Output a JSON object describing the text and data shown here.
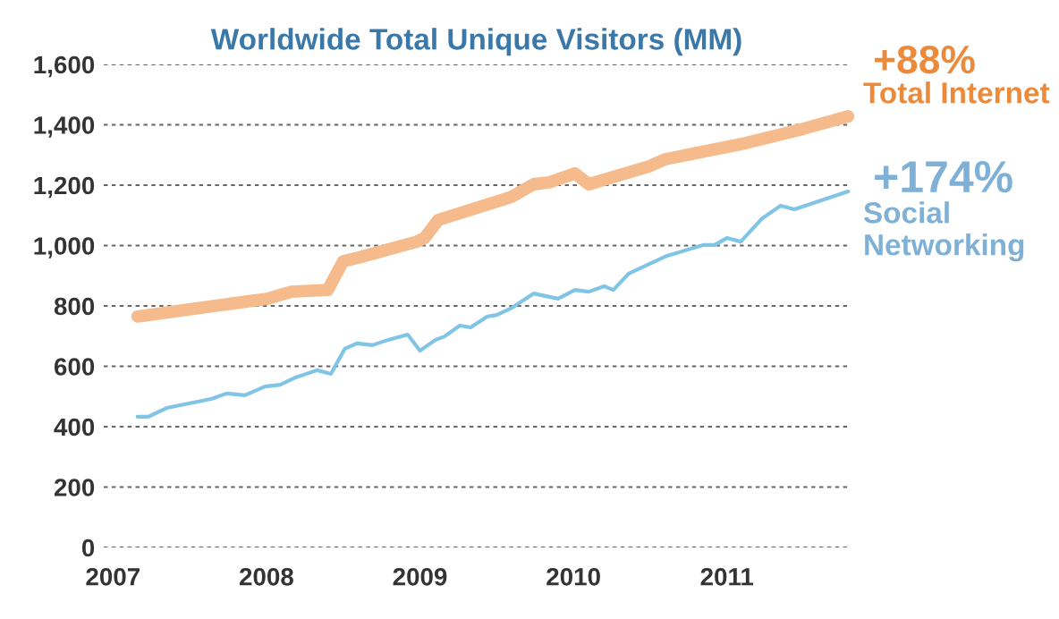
{
  "chart_data": {
    "type": "line",
    "title": "Worldwide Total Unique Visitors (MM)",
    "xlim": [
      2006.94,
      2011.8
    ],
    "xticks": [
      2007,
      2008,
      2009,
      2010,
      2011
    ],
    "ylim": [
      0,
      1600
    ],
    "yticks": [
      {
        "value": 0,
        "label": "0"
      },
      {
        "value": 200,
        "label": "200"
      },
      {
        "value": 400,
        "label": "400"
      },
      {
        "value": 600,
        "label": "600"
      },
      {
        "value": 800,
        "label": "800"
      },
      {
        "value": 1000,
        "label": "1,000"
      },
      {
        "value": 1200,
        "label": "1,200"
      },
      {
        "value": 1400,
        "label": "1,400"
      },
      {
        "value": 1600,
        "label": "1,600"
      }
    ],
    "grid": "y",
    "legend": false,
    "marker": "none",
    "series": [
      {
        "name": "Total Internet",
        "color": "#f6bb8c",
        "x": [
          2007.16,
          2008.01,
          2008.16,
          2008.4,
          2008.5,
          2008.6,
          2008.98,
          2009.03,
          2009.12,
          2009.6,
          2009.74,
          2009.84,
          2010.01,
          2010.1,
          2010.49,
          2010.6,
          2011.12,
          2011.5,
          2011.79
        ],
        "values": [
          765,
          824,
          847,
          853,
          948,
          960,
          1013,
          1025,
          1085,
          1162,
          1203,
          1209,
          1239,
          1203,
          1262,
          1286,
          1339,
          1387,
          1428
        ]
      },
      {
        "name": "Social Networking",
        "color": "#80c4e6",
        "x": [
          2007.16,
          2007.23,
          2007.35,
          2007.64,
          2007.74,
          2007.86,
          2007.99,
          2008.09,
          2008.19,
          2008.33,
          2008.42,
          2008.51,
          2008.59,
          2008.69,
          2008.79,
          2008.92,
          2009.0,
          2009.1,
          2009.16,
          2009.26,
          2009.33,
          2009.44,
          2009.5,
          2009.6,
          2009.74,
          2009.9,
          2010.01,
          2010.1,
          2010.2,
          2010.26,
          2010.36,
          2010.61,
          2010.85,
          2010.92,
          2011.0,
          2011.09,
          2011.23,
          2011.35,
          2011.44,
          2011.79
        ],
        "values": [
          433,
          433,
          462,
          492,
          510,
          504,
          533,
          539,
          563,
          587,
          575,
          658,
          676,
          670,
          687,
          705,
          652,
          687,
          699,
          735,
          729,
          765,
          770,
          794,
          841,
          824,
          853,
          847,
          865,
          853,
          907,
          966,
          1002,
          1002,
          1025,
          1013,
          1090,
          1132,
          1120,
          1179
        ]
      }
    ],
    "annotations": [
      {
        "text": "+88%",
        "x": 2011.79,
        "y": 1428
      },
      {
        "text": "+174%",
        "x": 2011.79,
        "y": 1179
      }
    ]
  }
}
